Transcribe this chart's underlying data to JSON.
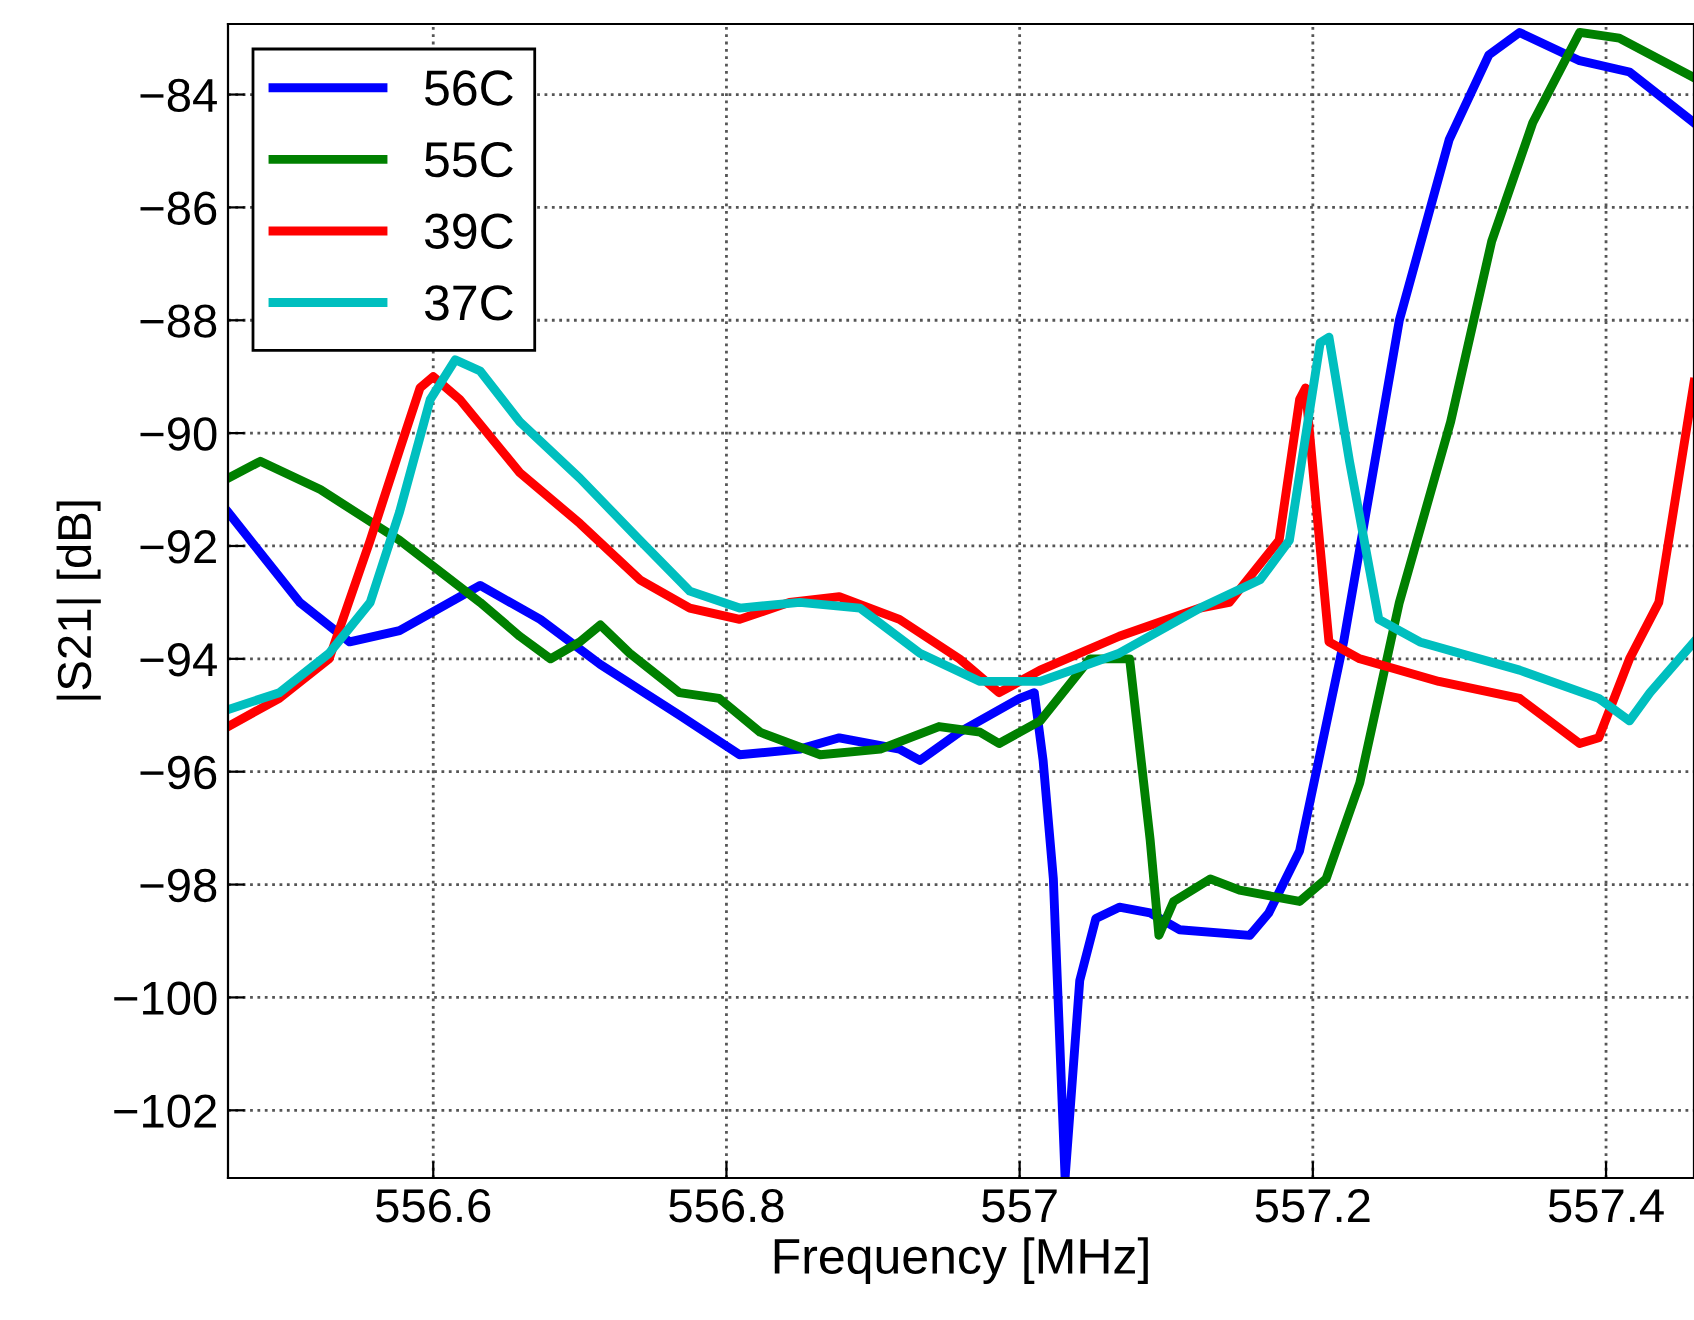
{
  "chart_data": {
    "type": "line",
    "xlabel": "Frequency [MHz]",
    "ylabel": "|S21| [dB]",
    "xlim": [
      556.46,
      557.46
    ],
    "ylim": [
      -103.2,
      -82.75
    ],
    "xticks": [
      556.6,
      556.8,
      {
        "value": 557,
        "label": "557"
      },
      557.2,
      557.4
    ],
    "yticks": [
      -102,
      -100,
      -98,
      -96,
      -94,
      -92,
      -90,
      -88,
      -86,
      -84
    ],
    "grid": true,
    "legend": "top left",
    "line_style": "solid",
    "marker": "none",
    "series": [
      {
        "name": "56C",
        "color": "#0000ff",
        "x": [
          556.46,
          556.509,
          556.543,
          556.577,
          556.632,
          556.673,
          556.714,
          556.768,
          556.809,
          556.85,
          556.877,
          556.918,
          556.932,
          556.959,
          557.0,
          557.01,
          557.016,
          557.023,
          557.031,
          557.041,
          557.052,
          557.068,
          557.089,
          557.109,
          557.157,
          557.17,
          557.191,
          557.221,
          557.259,
          557.293,
          557.32,
          557.341,
          557.382,
          557.416,
          557.46
        ],
        "values": [
          -91.4,
          -93.0,
          -93.7,
          -93.5,
          -92.7,
          -93.3,
          -94.1,
          -95.0,
          -95.7,
          -95.6,
          -95.4,
          -95.6,
          -95.8,
          -95.3,
          -94.7,
          -94.6,
          -95.8,
          -97.9,
          -103.2,
          -99.7,
          -98.6,
          -98.4,
          -98.5,
          -98.8,
          -98.9,
          -98.5,
          -97.4,
          -93.7,
          -88.0,
          -84.8,
          -83.3,
          -82.9,
          -83.4,
          -83.6,
          -84.5
        ]
      },
      {
        "name": "55C",
        "color": "#008000",
        "x": [
          556.46,
          556.482,
          556.523,
          556.577,
          556.632,
          556.659,
          556.68,
          556.7,
          556.714,
          556.734,
          556.768,
          556.795,
          556.823,
          556.864,
          556.905,
          556.945,
          556.973,
          556.986,
          557.014,
          557.048,
          557.075,
          557.089,
          557.095,
          557.105,
          557.13,
          557.15,
          557.191,
          557.209,
          557.232,
          557.259,
          557.294,
          557.322,
          557.35,
          557.382,
          557.409,
          557.46
        ],
        "values": [
          -90.8,
          -90.5,
          -91.0,
          -91.9,
          -93.0,
          -93.6,
          -94.0,
          -93.7,
          -93.4,
          -93.9,
          -94.6,
          -94.7,
          -95.3,
          -95.7,
          -95.6,
          -95.2,
          -95.3,
          -95.5,
          -95.1,
          -94.0,
          -94.0,
          -97.2,
          -98.9,
          -98.3,
          -97.9,
          -98.1,
          -98.3,
          -97.9,
          -96.2,
          -93.0,
          -89.8,
          -86.6,
          -84.5,
          -82.9,
          -83.0,
          -83.7
        ]
      },
      {
        "name": "39C",
        "color": "#ff0000",
        "x": [
          556.46,
          556.495,
          556.529,
          556.557,
          556.577,
          556.591,
          556.6,
          556.618,
          556.659,
          556.7,
          556.741,
          556.775,
          556.809,
          556.843,
          556.877,
          556.918,
          556.959,
          556.986,
          557.014,
          557.068,
          557.123,
          557.143,
          557.177,
          557.191,
          557.195,
          557.202,
          557.211,
          557.232,
          557.286,
          557.341,
          557.382,
          557.395,
          557.416,
          557.436,
          557.46
        ],
        "values": [
          -95.2,
          -94.7,
          -94.0,
          -91.9,
          -90.3,
          -89.2,
          -89.0,
          -89.4,
          -90.7,
          -91.6,
          -92.6,
          -93.1,
          -93.3,
          -93.0,
          -92.9,
          -93.3,
          -94.0,
          -94.6,
          -94.2,
          -93.6,
          -93.1,
          -93.0,
          -91.9,
          -89.4,
          -89.2,
          -91.2,
          -93.7,
          -94.0,
          -94.4,
          -94.7,
          -95.5,
          -95.4,
          -94.0,
          -93.0,
          -89.1
        ]
      },
      {
        "name": "37C",
        "color": "#00bfbf",
        "x": [
          556.46,
          556.495,
          556.529,
          556.557,
          556.577,
          556.598,
          556.615,
          556.632,
          556.659,
          556.7,
          556.741,
          556.775,
          556.809,
          556.85,
          556.891,
          556.932,
          556.973,
          557.014,
          557.068,
          557.123,
          557.164,
          557.184,
          557.205,
          557.211,
          557.225,
          557.245,
          557.273,
          557.341,
          557.395,
          557.416,
          557.43,
          557.46
        ],
        "values": [
          -94.9,
          -94.6,
          -93.9,
          -93.0,
          -91.4,
          -89.4,
          -88.7,
          -88.9,
          -89.8,
          -90.8,
          -91.9,
          -92.8,
          -93.1,
          -93.0,
          -93.1,
          -93.9,
          -94.4,
          -94.4,
          -93.9,
          -93.1,
          -92.6,
          -91.9,
          -88.4,
          -88.3,
          -90.5,
          -93.3,
          -93.7,
          -94.2,
          -94.7,
          -95.1,
          -94.6,
          -93.7
        ]
      }
    ]
  }
}
